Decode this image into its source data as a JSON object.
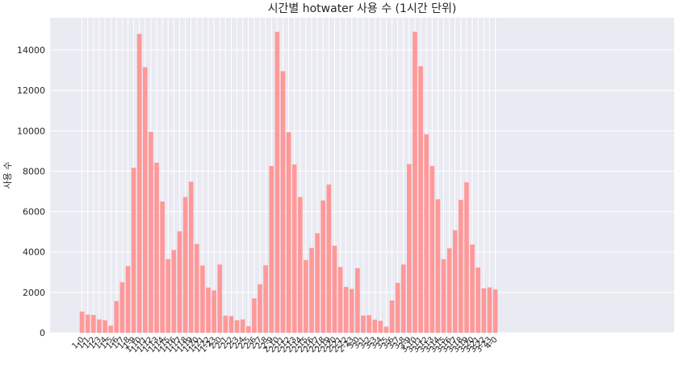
{
  "chart_data": {
    "type": "bar",
    "title": "시간별 hotwater 사용 수 (1시간 단위)",
    "xlabel": "",
    "ylabel": "사용 수",
    "ylim": [
      0,
      15600
    ],
    "yticks": [
      0,
      2000,
      4000,
      6000,
      8000,
      10000,
      12000,
      14000
    ],
    "grid": true,
    "background": "#eaeaf2",
    "bar_color": "#ff9999",
    "categories": [
      "1-0",
      "1-1",
      "1-2",
      "1-3",
      "1-4",
      "1-5",
      "1-6",
      "1-7",
      "1-8",
      "1-9",
      "1-10",
      "1-11",
      "1-12",
      "1-13",
      "1-14",
      "1-15",
      "1-16",
      "1-17",
      "1-18",
      "1-19",
      "1-20",
      "1-21",
      "1-22",
      "1-23",
      "2-0",
      "2-1",
      "2-2",
      "2-3",
      "2-4",
      "2-5",
      "2-6",
      "2-7",
      "2-8",
      "2-9",
      "2-10",
      "2-11",
      "2-12",
      "2-13",
      "2-14",
      "2-15",
      "2-16",
      "2-17",
      "2-18",
      "2-19",
      "2-20",
      "2-21",
      "2-22",
      "2-23",
      "3-0",
      "3-1",
      "3-2",
      "3-3",
      "3-4",
      "3-5",
      "3-6",
      "3-7",
      "3-8",
      "3-9",
      "3-10",
      "3-11",
      "3-12",
      "3-13",
      "3-14",
      "3-15",
      "3-16",
      "3-17",
      "3-18",
      "3-19",
      "3-20",
      "3-21",
      "3-22",
      "3-23",
      "4-0"
    ],
    "values": [
      1050,
      900,
      880,
      660,
      620,
      350,
      1570,
      2500,
      3300,
      8170,
      14800,
      13150,
      9950,
      8420,
      6500,
      3650,
      4100,
      5020,
      6720,
      7480,
      4400,
      3330,
      2240,
      2100,
      3380,
      850,
      830,
      620,
      660,
      330,
      1700,
      2400,
      3340,
      8260,
      14900,
      12950,
      9930,
      8330,
      6720,
      3600,
      4200,
      4930,
      6550,
      7340,
      4310,
      3260,
      2270,
      2170,
      3200,
      850,
      870,
      650,
      590,
      300,
      1600,
      2470,
      3380,
      8350,
      14900,
      13200,
      9830,
      8260,
      6610,
      3640,
      4180,
      5080,
      6580,
      7450,
      4370,
      3230,
      2200,
      2250,
      2150
    ]
  }
}
